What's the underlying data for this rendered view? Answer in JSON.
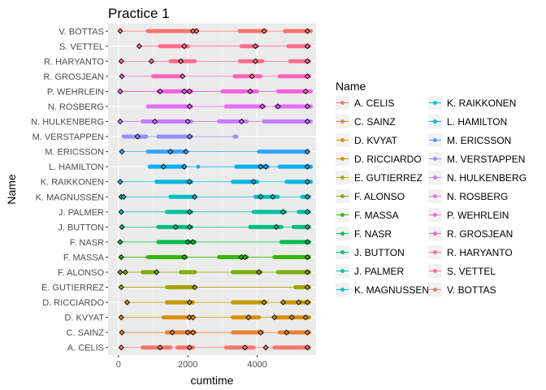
{
  "chart_data": {
    "type": "line",
    "title": "Practice 1",
    "xlabel": "cumtime",
    "ylabel": "Name",
    "xlim": [
      -300,
      5700
    ],
    "x_ticks": [
      0,
      2000,
      4000
    ],
    "x_tick_labels": [
      "0",
      "2000",
      "4000"
    ],
    "grid": true,
    "legend_placement": "right",
    "legend_title": "Name",
    "categories": [
      "A. CELIS",
      "C. SAINZ",
      "D. KVYAT",
      "D. RICCIARDO",
      "E. GUTIERREZ",
      "F. ALONSO",
      "F. MASSA",
      "F. NASR",
      "J. BUTTON",
      "J. PALMER",
      "K. MAGNUSSEN",
      "K. RAIKKONEN",
      "L. HAMILTON",
      "M. ERICSSON",
      "M. VERSTAPPEN",
      "N. HULKENBERG",
      "N. ROSBERG",
      "P. WEHRLEIN",
      "R. GROSJEAN",
      "R. HARYANTO",
      "S. VETTEL",
      "V. BOTTAS"
    ],
    "colors": [
      "#F8766D",
      "#EA8331",
      "#D89000",
      "#C09B00",
      "#A3A500",
      "#7CAE00",
      "#39B600",
      "#00BB4E",
      "#00BF7D",
      "#00C1A3",
      "#00BFC4",
      "#00BAE0",
      "#00B0F6",
      "#35A2FF",
      "#9590FF",
      "#C77CFF",
      "#E76BF3",
      "#FA62DB",
      "#FF62BC",
      "#FF6C91",
      "#FF6C91",
      "#F8766D"
    ],
    "series": [
      {
        "name": "A. CELIS",
        "segments": [
          [
            80,
            80
          ],
          [
            700,
            1500
          ],
          [
            1700,
            2150
          ],
          [
            3100,
            3900
          ],
          [
            4500,
            5500
          ]
        ],
        "highlights": [
          80,
          1200,
          2050,
          3650,
          4250,
          5450
        ]
      },
      {
        "name": "C. SAINZ",
        "segments": [
          [
            100,
            100
          ],
          [
            1400,
            2200
          ],
          [
            3300,
            4150
          ],
          [
            4650,
            5500
          ]
        ],
        "highlights": [
          100,
          1550,
          2000,
          2150,
          4100,
          4850,
          5450
        ]
      },
      {
        "name": "D. KVYAT",
        "segments": [
          [
            80,
            80
          ],
          [
            1300,
            2150
          ],
          [
            3300,
            4050
          ],
          [
            4500,
            5500
          ]
        ],
        "highlights": [
          80,
          2050,
          2150,
          3750,
          4500,
          5000,
          5400
        ]
      },
      {
        "name": "D. RICCIARDO",
        "segments": [
          [
            250,
            250
          ],
          [
            1400,
            2150
          ],
          [
            3300,
            4250
          ],
          [
            4800,
            5500
          ]
        ],
        "highlights": [
          250,
          2050,
          4200,
          4750,
          5200,
          5450
        ]
      },
      {
        "name": "E. GUTIERREZ",
        "segments": [
          [
            80,
            80
          ],
          [
            1400,
            2200
          ],
          [
            5100,
            5500
          ]
        ],
        "highlights": [
          80,
          2200,
          5450
        ]
      },
      {
        "name": "F. ALONSO",
        "segments": [
          [
            50,
            50
          ],
          [
            200,
            200
          ],
          [
            700,
            1100
          ],
          [
            1800,
            2200
          ],
          [
            3300,
            4100
          ],
          [
            4600,
            5500
          ]
        ],
        "highlights": [
          50,
          200,
          1100,
          4050,
          5450
        ]
      },
      {
        "name": "F. MASSA",
        "segments": [
          [
            80,
            80
          ],
          [
            850,
            1950
          ],
          [
            2900,
            3700
          ],
          [
            4500,
            5500
          ]
        ],
        "highlights": [
          80,
          1900,
          3550,
          3650,
          5450
        ]
      },
      {
        "name": "F. NASR",
        "segments": [
          [
            50,
            50
          ],
          [
            1150,
            2200
          ],
          [
            4700,
            5500
          ]
        ],
        "highlights": [
          50,
          2000,
          2150,
          5450
        ]
      },
      {
        "name": "J. BUTTON",
        "segments": [
          [
            100,
            100
          ],
          [
            1150,
            2100
          ],
          [
            3800,
            4700
          ],
          [
            5050,
            5500
          ]
        ],
        "highlights": [
          100,
          1650,
          2050,
          4550,
          5450
        ]
      },
      {
        "name": "J. PALMER",
        "segments": [
          [
            80,
            80
          ],
          [
            1400,
            2100
          ],
          [
            3900,
            4800
          ],
          [
            5200,
            5500
          ]
        ],
        "highlights": [
          80,
          2050,
          4750,
          5450
        ]
      },
      {
        "name": "K. MAGNUSSEN",
        "segments": [
          [
            80,
            80
          ],
          [
            150,
            150
          ],
          [
            1500,
            2200
          ],
          [
            3950,
            4600
          ],
          [
            5300,
            5500
          ]
        ],
        "highlights": [
          80,
          150,
          2200,
          4100,
          4450,
          5450
        ]
      },
      {
        "name": "K. RAIKKONEN",
        "segments": [
          [
            50,
            50
          ],
          [
            1100,
            2100
          ],
          [
            3300,
            4000
          ],
          [
            4850,
            5550
          ]
        ],
        "highlights": [
          50,
          2050,
          3900,
          5450
        ]
      },
      {
        "name": "L. HAMILTON",
        "segments": [
          [
            900,
            1900
          ],
          [
            2300,
            2300
          ],
          [
            3400,
            4300
          ],
          [
            4650,
            5550
          ]
        ],
        "highlights": [
          1300,
          1900,
          4100,
          4250,
          5450
        ]
      },
      {
        "name": "M. ERICSSON",
        "segments": [
          [
            100,
            100
          ],
          [
            850,
            1950
          ],
          [
            4050,
            5450
          ]
        ],
        "highlights": [
          100,
          1500,
          1950,
          5450
        ]
      },
      {
        "name": "M. VERSTAPPEN",
        "segments": [
          [
            150,
            800
          ],
          [
            1150,
            2100
          ],
          [
            3350,
            3400
          ]
        ],
        "highlights": [
          550,
          2050
        ]
      },
      {
        "name": "N. HULKENBERG",
        "segments": [
          [
            50,
            50
          ],
          [
            700,
            2100
          ],
          [
            2900,
            3700
          ],
          [
            4200,
            5550
          ]
        ],
        "highlights": [
          50,
          1050,
          2000,
          3550,
          5450
        ]
      },
      {
        "name": "N. ROSBERG",
        "segments": [
          [
            850,
            2100
          ],
          [
            3100,
            4200
          ],
          [
            4550,
            5550
          ]
        ],
        "highlights": [
          2050,
          4150,
          4600,
          5450
        ]
      },
      {
        "name": "P. WEHRLEIN",
        "segments": [
          [
            50,
            50
          ],
          [
            1150,
            2100
          ],
          [
            3000,
            4000
          ],
          [
            4600,
            5550
          ]
        ],
        "highlights": [
          50,
          1200,
          1900,
          2050,
          3800,
          5400
        ]
      },
      {
        "name": "R. GROSJEAN",
        "segments": [
          [
            100,
            100
          ],
          [
            1000,
            1800
          ],
          [
            3350,
            4100
          ],
          [
            4650,
            5500
          ]
        ],
        "highlights": [
          100,
          1850,
          3850,
          5450
        ]
      },
      {
        "name": "R. HARYANTO",
        "segments": [
          [
            80,
            80
          ],
          [
            950,
            950
          ],
          [
            1500,
            2200
          ],
          [
            3500,
            4150
          ],
          [
            4950,
            5500
          ]
        ],
        "highlights": [
          80,
          950,
          1800,
          3950,
          5450
        ]
      },
      {
        "name": "S. VETTEL",
        "segments": [
          [
            600,
            600
          ],
          [
            1200,
            2000
          ],
          [
            3550,
            4000
          ],
          [
            4900,
            5500
          ]
        ],
        "highlights": [
          600,
          1900,
          3950,
          5450
        ]
      },
      {
        "name": "V. BOTTAS",
        "segments": [
          [
            50,
            50
          ],
          [
            850,
            2250
          ],
          [
            3500,
            4250
          ],
          [
            4800,
            5550
          ]
        ],
        "highlights": [
          50,
          2150,
          2250,
          4200,
          5450
        ]
      }
    ]
  }
}
